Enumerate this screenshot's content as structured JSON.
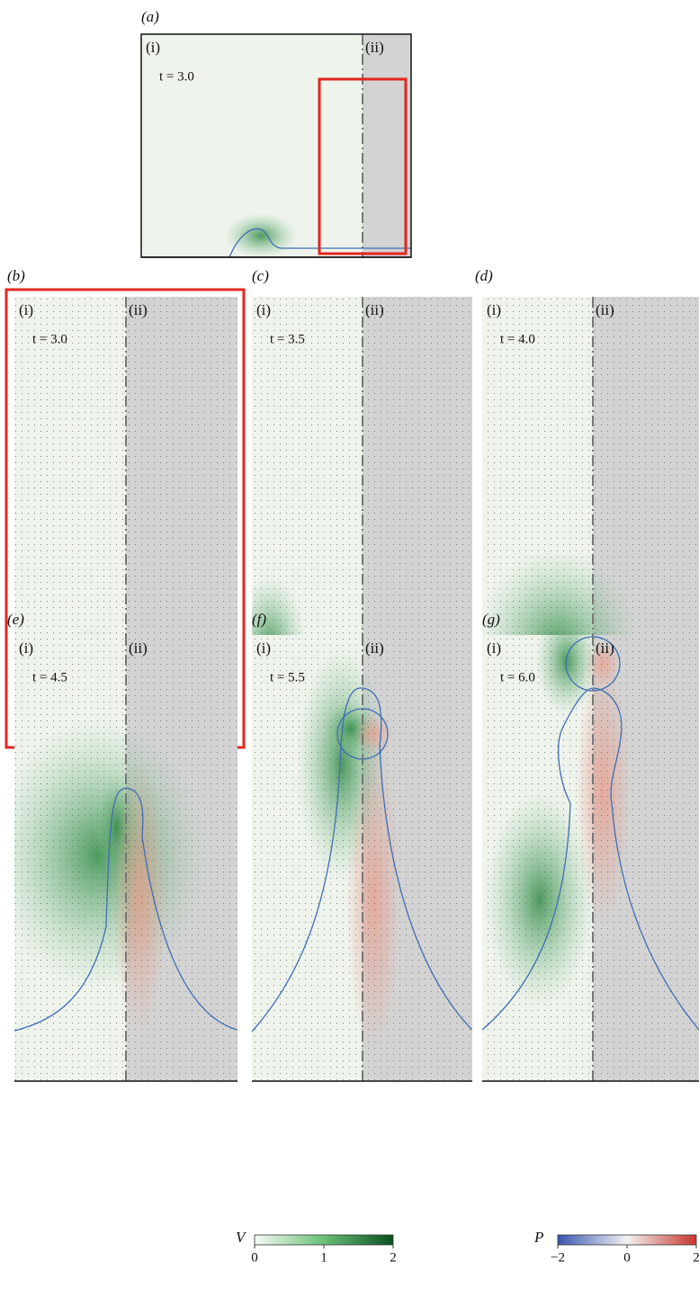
{
  "panels": [
    {
      "label": "(a)",
      "left": "(i)",
      "right": "(ii)",
      "time": "t = 3.0"
    },
    {
      "label": "(b)",
      "left": "(i)",
      "right": "(ii)",
      "time": "t = 3.0"
    },
    {
      "label": "(c)",
      "left": "(i)",
      "right": "(ii)",
      "time": "t = 3.5"
    },
    {
      "label": "(d)",
      "left": "(i)",
      "right": "(ii)",
      "time": "t = 4.0"
    },
    {
      "label": "(e)",
      "left": "(i)",
      "right": "(ii)",
      "time": "t = 4.5"
    },
    {
      "label": "(f)",
      "left": "(i)",
      "right": "(ii)",
      "time": "t = 5.5"
    },
    {
      "label": "(g)",
      "left": "(i)",
      "right": "(ii)",
      "time": "t = 6.0"
    }
  ],
  "colorbars": [
    {
      "label": "V",
      "lim": [
        0,
        2
      ],
      "ticks": [
        0,
        1,
        2
      ]
    },
    {
      "label": "P",
      "lim": [
        -2,
        2
      ],
      "ticks": [
        {
          "value": -2,
          "label": "−2"
        },
        0,
        2
      ]
    }
  ]
}
